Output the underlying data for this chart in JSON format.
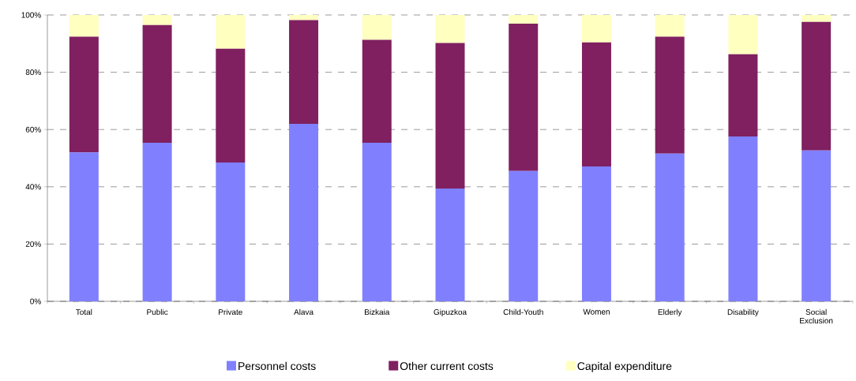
{
  "chart_data": {
    "type": "bar",
    "stacked": true,
    "categories": [
      "Total",
      "Public",
      "Private",
      "Alava",
      "Bizkaia",
      "Gipuzkoa",
      "Child-Youth",
      "Women",
      "Elderly",
      "Disability",
      "Social Exclusion"
    ],
    "series": [
      {
        "name": "Personnel costs",
        "color": "#8080ff",
        "values": [
          52,
          55.4,
          48.5,
          62,
          55.4,
          39.4,
          45.5,
          47.1,
          51.6,
          57.6,
          52.7
        ]
      },
      {
        "name": "Other current costs",
        "color": "#802060",
        "values": [
          40.4,
          41.1,
          39.7,
          36.2,
          35.9,
          50.8,
          51.5,
          43.3,
          40.8,
          28.7,
          44.9
        ]
      },
      {
        "name": "Capital expenditure",
        "color": "#ffffc0",
        "values": [
          7.6,
          3.5,
          11.8,
          1.8,
          8.7,
          9.8,
          3,
          9.6,
          7.6,
          13.7,
          2.4
        ]
      }
    ],
    "ylim": [
      0,
      100
    ],
    "yticks": [
      {
        "value": 0,
        "label": "0%"
      },
      {
        "value": 20,
        "label": "20%"
      },
      {
        "value": 40,
        "label": "40%"
      },
      {
        "value": 60,
        "label": "60%"
      },
      {
        "value": 80,
        "label": "80%"
      },
      {
        "value": 100,
        "label": "100%"
      }
    ],
    "grid": "y",
    "legend": "bottom"
  }
}
